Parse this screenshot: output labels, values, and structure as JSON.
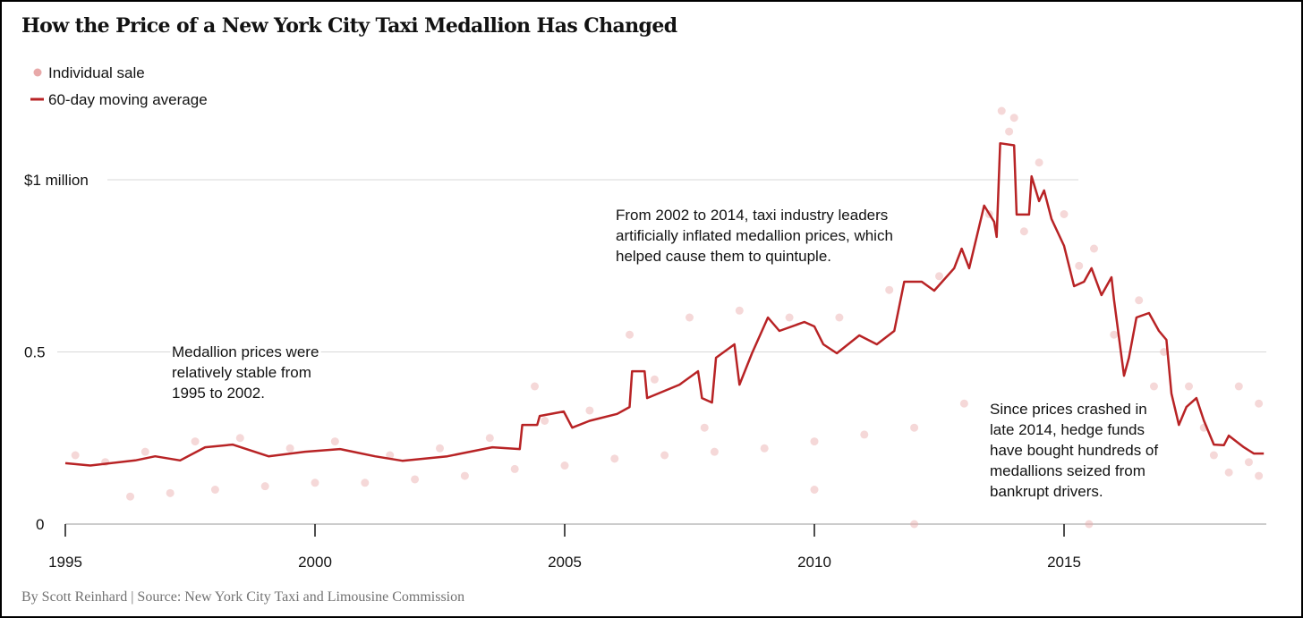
{
  "chart_data": {
    "type": "line",
    "title": "How the Price of a New York City Taxi Medallion Has Changed",
    "legend": {
      "placement": "top-left",
      "items": [
        {
          "label": "Individual sale",
          "kind": "dot"
        },
        {
          "label": "60-day moving average",
          "kind": "line"
        }
      ]
    },
    "colors": {
      "line": "#b82325",
      "dots": "#e8a9a9",
      "grid": "#d9d9d9",
      "text": "#121212",
      "footer": "#727272"
    },
    "xlim": [
      1995,
      2019
    ],
    "ylim": [
      0,
      1.2
    ],
    "x_ticks": [
      1995,
      2000,
      2005,
      2010,
      2015
    ],
    "x_tick_labels": [
      "1995",
      "2000",
      "2005",
      "2010",
      "2015"
    ],
    "y_ticks": [
      0,
      0.5,
      1
    ],
    "y_tick_labels": [
      "0",
      "0.5",
      "$1 million"
    ],
    "grid": "horizontal",
    "series": [
      {
        "name": "60-day moving average",
        "points": [
          [
            1995.0,
            0.177
          ],
          [
            1995.5,
            0.17
          ],
          [
            1996.4,
            0.185
          ],
          [
            1996.8,
            0.197
          ],
          [
            1997.3,
            0.185
          ],
          [
            1997.8,
            0.223
          ],
          [
            1998.35,
            0.231
          ],
          [
            1999.07,
            0.197
          ],
          [
            1999.8,
            0.21
          ],
          [
            2000.5,
            0.218
          ],
          [
            2001.2,
            0.197
          ],
          [
            2001.75,
            0.184
          ],
          [
            2002.65,
            0.197
          ],
          [
            2003.55,
            0.223
          ],
          [
            2004.1,
            0.218
          ],
          [
            2004.15,
            0.288
          ],
          [
            2004.45,
            0.288
          ],
          [
            2004.5,
            0.314
          ],
          [
            2004.98,
            0.327
          ],
          [
            2005.15,
            0.28
          ],
          [
            2005.5,
            0.3
          ],
          [
            2006.05,
            0.32
          ],
          [
            2006.3,
            0.34
          ],
          [
            2006.35,
            0.444
          ],
          [
            2006.6,
            0.444
          ],
          [
            2006.65,
            0.366
          ],
          [
            2007.3,
            0.405
          ],
          [
            2007.67,
            0.444
          ],
          [
            2007.75,
            0.366
          ],
          [
            2007.95,
            0.353
          ],
          [
            2008.03,
            0.483
          ],
          [
            2008.4,
            0.522
          ],
          [
            2008.5,
            0.405
          ],
          [
            2008.75,
            0.496
          ],
          [
            2009.07,
            0.6
          ],
          [
            2009.3,
            0.561
          ],
          [
            2009.8,
            0.587
          ],
          [
            2010.0,
            0.574
          ],
          [
            2010.18,
            0.522
          ],
          [
            2010.45,
            0.496
          ],
          [
            2010.9,
            0.548
          ],
          [
            2011.25,
            0.522
          ],
          [
            2011.6,
            0.561
          ],
          [
            2011.8,
            0.704
          ],
          [
            2012.15,
            0.704
          ],
          [
            2012.4,
            0.678
          ],
          [
            2012.8,
            0.743
          ],
          [
            2012.95,
            0.8
          ],
          [
            2013.1,
            0.743
          ],
          [
            2013.4,
            0.925
          ],
          [
            2013.6,
            0.878
          ],
          [
            2013.65,
            0.834
          ],
          [
            2013.72,
            1.106
          ],
          [
            2014.0,
            1.1
          ],
          [
            2014.05,
            0.899
          ],
          [
            2014.3,
            0.899
          ],
          [
            2014.35,
            1.01
          ],
          [
            2014.5,
            0.938
          ],
          [
            2014.6,
            0.969
          ],
          [
            2014.75,
            0.886
          ],
          [
            2015.0,
            0.808
          ],
          [
            2015.2,
            0.691
          ],
          [
            2015.4,
            0.704
          ],
          [
            2015.55,
            0.743
          ],
          [
            2015.75,
            0.665
          ],
          [
            2015.95,
            0.717
          ],
          [
            2016.0,
            0.652
          ],
          [
            2016.2,
            0.431
          ],
          [
            2016.3,
            0.483
          ],
          [
            2016.45,
            0.6
          ],
          [
            2016.7,
            0.613
          ],
          [
            2016.9,
            0.561
          ],
          [
            2017.05,
            0.535
          ],
          [
            2017.15,
            0.379
          ],
          [
            2017.3,
            0.288
          ],
          [
            2017.45,
            0.34
          ],
          [
            2017.65,
            0.366
          ],
          [
            2017.8,
            0.301
          ],
          [
            2018.0,
            0.231
          ],
          [
            2018.2,
            0.229
          ],
          [
            2018.3,
            0.257
          ],
          [
            2018.6,
            0.223
          ],
          [
            2018.8,
            0.205
          ],
          [
            2019.0,
            0.205
          ]
        ]
      },
      {
        "name": "Individual sale",
        "kind": "scatter",
        "points": [
          [
            1995.2,
            0.2
          ],
          [
            1995.8,
            0.18
          ],
          [
            1996.3,
            0.08
          ],
          [
            1996.6,
            0.21
          ],
          [
            1997.1,
            0.09
          ],
          [
            1997.6,
            0.24
          ],
          [
            1998.0,
            0.1
          ],
          [
            1998.5,
            0.25
          ],
          [
            1999.0,
            0.11
          ],
          [
            1999.5,
            0.22
          ],
          [
            2000.0,
            0.12
          ],
          [
            2000.4,
            0.24
          ],
          [
            2001.0,
            0.12
          ],
          [
            2001.5,
            0.2
          ],
          [
            2002.0,
            0.13
          ],
          [
            2002.5,
            0.22
          ],
          [
            2003.0,
            0.14
          ],
          [
            2003.5,
            0.25
          ],
          [
            2004.0,
            0.16
          ],
          [
            2004.4,
            0.4
          ],
          [
            2004.6,
            0.3
          ],
          [
            2005.0,
            0.17
          ],
          [
            2005.5,
            0.33
          ],
          [
            2006.0,
            0.19
          ],
          [
            2006.3,
            0.55
          ],
          [
            2006.8,
            0.42
          ],
          [
            2007.0,
            0.2
          ],
          [
            2007.5,
            0.6
          ],
          [
            2007.8,
            0.28
          ],
          [
            2008.0,
            0.21
          ],
          [
            2008.5,
            0.62
          ],
          [
            2009.0,
            0.22
          ],
          [
            2009.5,
            0.6
          ],
          [
            2010.0,
            0.24
          ],
          [
            2010.5,
            0.6
          ],
          [
            2011.0,
            0.26
          ],
          [
            2011.5,
            0.68
          ],
          [
            2012.0,
            0.28
          ],
          [
            2012.5,
            0.72
          ],
          [
            2013.0,
            0.35
          ],
          [
            2013.5,
            0.9
          ],
          [
            2013.75,
            1.2
          ],
          [
            2013.9,
            1.14
          ],
          [
            2014.0,
            1.18
          ],
          [
            2014.2,
            0.85
          ],
          [
            2014.5,
            1.05
          ],
          [
            2015.0,
            0.9
          ],
          [
            2015.3,
            0.75
          ],
          [
            2015.6,
            0.8
          ],
          [
            2016.0,
            0.55
          ],
          [
            2016.5,
            0.65
          ],
          [
            2016.8,
            0.4
          ],
          [
            2017.0,
            0.5
          ],
          [
            2017.5,
            0.4
          ],
          [
            2017.8,
            0.28
          ],
          [
            2018.0,
            0.2
          ],
          [
            2018.3,
            0.15
          ],
          [
            2018.5,
            0.4
          ],
          [
            2018.7,
            0.18
          ],
          [
            2018.9,
            0.35
          ],
          [
            2018.9,
            0.14
          ],
          [
            2012.0,
            0.0
          ],
          [
            2010.0,
            0.1
          ],
          [
            2015.5,
            0.0
          ]
        ]
      }
    ],
    "annotations": [
      {
        "lines": [
          "Medallion prices were",
          "relatively stable from",
          "1995 to 2002."
        ]
      },
      {
        "lines": [
          "From 2002 to 2014, taxi industry leaders",
          "artificially inflated medallion prices, which",
          "helped cause them to quintuple."
        ]
      },
      {
        "lines": [
          "Since prices crashed in",
          "late 2014, hedge funds",
          "have bought hundreds of",
          "medallions seized from",
          "bankrupt drivers."
        ]
      }
    ]
  },
  "footer": "By Scott Reinhard | Source: New York City Taxi and Limousine Commission"
}
